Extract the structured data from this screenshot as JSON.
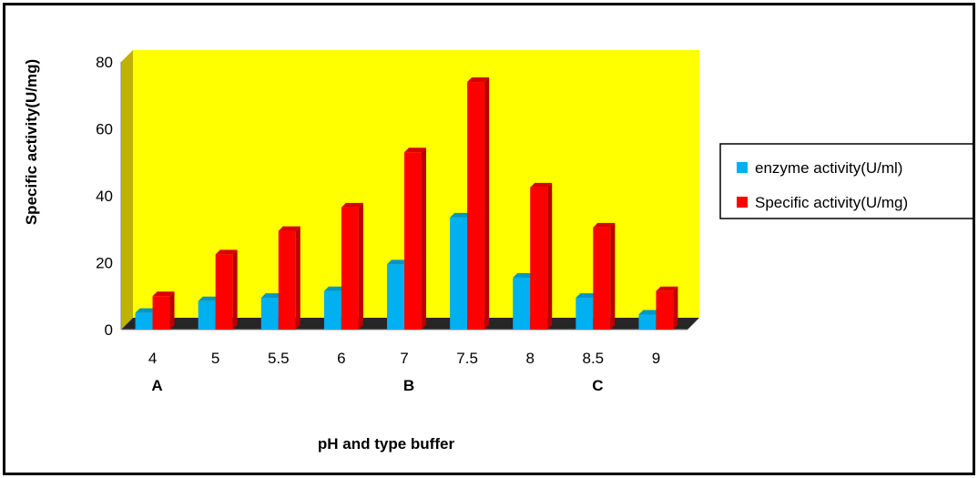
{
  "chart_data": {
    "type": "bar",
    "categories": [
      "4",
      "5",
      "5.5",
      "6",
      "7",
      "7.5",
      "8",
      "8.5",
      "9"
    ],
    "group_labels": [
      {
        "label": "A",
        "category": "4"
      },
      {
        "label": "B",
        "category": "7"
      },
      {
        "label": "C",
        "category": "8.5"
      }
    ],
    "series": [
      {
        "name": "enzyme activity(U/ml)",
        "color": "#00b0f0",
        "values": [
          5,
          8.5,
          9.5,
          11.5,
          19.5,
          33.5,
          15.5,
          9.5,
          4.5
        ]
      },
      {
        "name": "Specific activity(U/mg)",
        "color": "#ff0000",
        "values": [
          10,
          22.5,
          29.5,
          36.5,
          53,
          74,
          42.5,
          30.5,
          11.5
        ]
      }
    ],
    "xlabel": "pH and type buffer",
    "ylabel": "Specific activity(U/mg)",
    "ylim": [
      0,
      80
    ],
    "yticks": [
      "0",
      "20",
      "40",
      "60",
      "80"
    ],
    "plot_background": "#ffff00",
    "floor_color": "#262626",
    "wall_side_color": "#c0b300",
    "grid": false,
    "legend_position": "right"
  }
}
